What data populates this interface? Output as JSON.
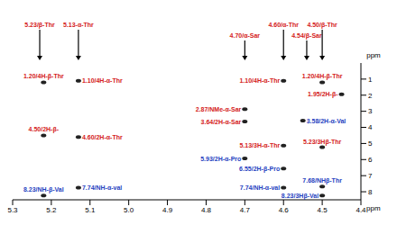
{
  "chart_data": {
    "type": "scatter",
    "x_label": "ppm",
    "y_label": "ppm",
    "xlim": [
      4.4,
      5.3
    ],
    "xticks": [
      5.3,
      5.2,
      5.1,
      {
        "value": 5.0,
        "label": "5.0"
      },
      4.9,
      4.8,
      4.7,
      4.6,
      4.5,
      4.4
    ],
    "ylim": [
      0,
      8.5
    ],
    "yticks": [
      1,
      2,
      3,
      4,
      5,
      6,
      7,
      8
    ],
    "grid": false,
    "points": [
      {
        "x": 5.22,
        "y": 1.2,
        "label": "1.20/4H-β-Thr",
        "color": "#d42020"
      },
      {
        "x": 5.13,
        "y": 1.1,
        "label": "1.10/4H-α-Thr",
        "color": "#d42020"
      },
      {
        "x": 5.22,
        "y": 4.5,
        "label": "4.50/2H-β-",
        "color": "#d42020"
      },
      {
        "x": 5.13,
        "y": 4.6,
        "label": "4.60/2H-α-Thr",
        "color": "#d42020"
      },
      {
        "x": 5.22,
        "y": 8.23,
        "label": "8.23/NH-β-Val",
        "color": "#1f3fbf"
      },
      {
        "x": 5.13,
        "y": 7.74,
        "label": "7.74/NH-α-val",
        "color": "#1f3fbf"
      },
      {
        "x": 4.6,
        "y": 1.1,
        "label": "1.10/4H-α-Thr",
        "color": "#d42020"
      },
      {
        "x": 4.5,
        "y": 1.2,
        "label": "1.20/4H-β-Thr",
        "color": "#d42020"
      },
      {
        "x": 4.7,
        "y": 2.87,
        "label": "2.87/NMe-α-Sar",
        "color": "#d42020"
      },
      {
        "x": 4.55,
        "y": 3.58,
        "label": "3.58/2H-α-Val",
        "color": "#1f3fbf"
      },
      {
        "x": 4.7,
        "y": 3.64,
        "label": "3.64/2H-α-Sar",
        "color": "#d42020"
      },
      {
        "x": 4.45,
        "y": 1.95,
        "label": "1.95/2H-β-",
        "color": "#d42020"
      },
      {
        "x": 4.7,
        "y": 5.93,
        "label": "5.93/2H-α-Pro",
        "color": "#1f3fbf"
      },
      {
        "x": 4.6,
        "y": 5.13,
        "label": "5.13/3H-α-Thr",
        "color": "#d42020"
      },
      {
        "x": 4.5,
        "y": 5.23,
        "label": "5.23/3Hβ-Thr",
        "color": "#d42020"
      },
      {
        "x": 4.6,
        "y": 6.55,
        "label": "6.55/2H-β-Pro",
        "color": "#1f3fbf"
      },
      {
        "x": 4.5,
        "y": 7.68,
        "label": "7.68/NHβ-Thr",
        "color": "#1f3fbf"
      },
      {
        "x": 4.6,
        "y": 7.74,
        "label": "7.74/NH-α-val",
        "color": "#1f3fbf"
      },
      {
        "x": 4.5,
        "y": 8.23,
        "label": "8.23/3Hβ-Val",
        "color": "#1f3fbf"
      }
    ],
    "top_labels": [
      {
        "x": 5.23,
        "label": "5.23/β-Thr",
        "color": "#d42020"
      },
      {
        "x": 5.13,
        "label": "5.13-α-Thr",
        "color": "#d42020"
      },
      {
        "x": 4.7,
        "label": "4.70/α-Sar",
        "color": "#d42020"
      },
      {
        "x": 4.6,
        "label": "4.60/α-Thr",
        "color": "#d42020"
      },
      {
        "x": 4.54,
        "label": "4.54/β-Sar",
        "color": "#d42020"
      },
      {
        "x": 4.5,
        "label": "4.50/β-Thr",
        "color": "#d42020"
      }
    ]
  }
}
